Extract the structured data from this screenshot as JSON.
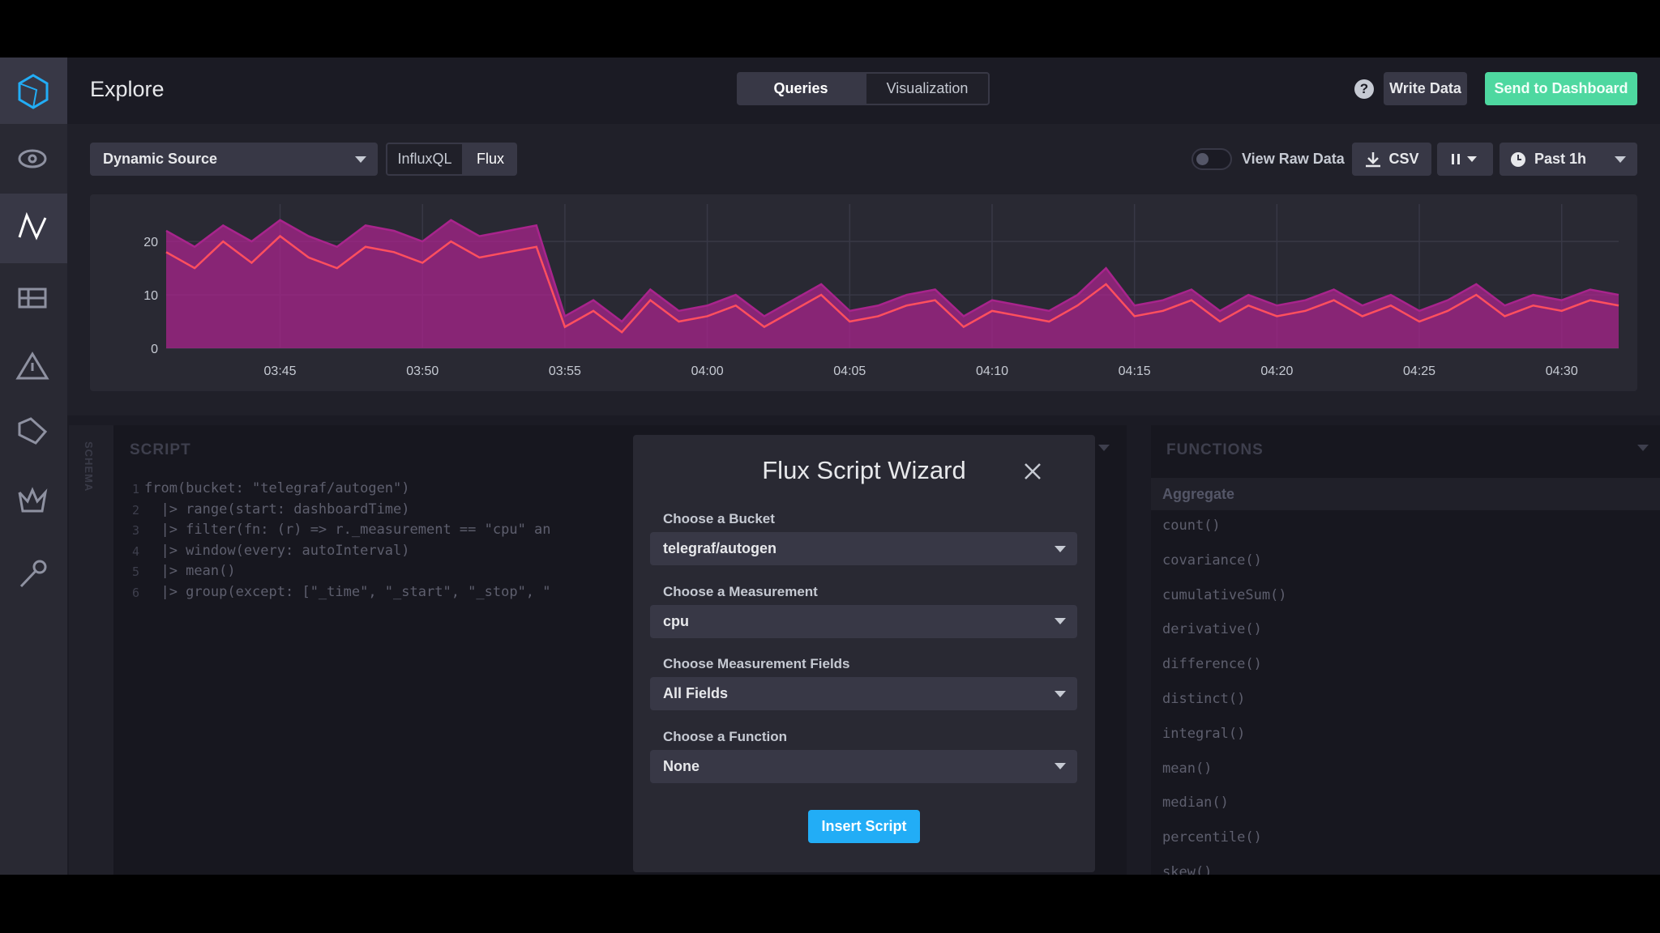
{
  "header": {
    "title": "Explore",
    "tabs": [
      "Queries",
      "Visualization"
    ],
    "help": "?",
    "buttons": [
      "Write Data",
      "Send to Dashboard"
    ]
  },
  "toolbar": {
    "source": "Dynamic Source",
    "languages": [
      "InfluxQL",
      "Flux"
    ],
    "raw_data": "View Raw Data",
    "csv": "CSV",
    "time_range": "Past 1h"
  },
  "chart_data": {
    "type": "area",
    "x": [
      "03:41",
      "03:42",
      "03:43",
      "03:44",
      "03:45",
      "03:46",
      "03:47",
      "03:48",
      "03:49",
      "03:50",
      "03:51",
      "03:52",
      "03:53",
      "03:54",
      "03:55",
      "03:56",
      "03:57",
      "03:58",
      "03:59",
      "04:00",
      "04:01",
      "04:02",
      "04:03",
      "04:04",
      "04:05",
      "04:06",
      "04:07",
      "04:08",
      "04:09",
      "04:10",
      "04:11",
      "04:12",
      "04:13",
      "04:14",
      "04:15",
      "04:16",
      "04:17",
      "04:18",
      "04:19",
      "04:20",
      "04:21",
      "04:22",
      "04:23",
      "04:24",
      "04:25",
      "04:26",
      "04:27",
      "04:28",
      "04:29",
      "04:30",
      "04:31",
      "04:32"
    ],
    "series": [
      {
        "color": "#a8248c",
        "values": [
          22,
          19,
          23,
          20,
          24,
          21,
          19,
          23,
          22,
          20,
          24,
          21,
          22,
          23,
          6,
          9,
          5,
          11,
          7,
          8,
          10,
          6,
          9,
          12,
          7,
          8,
          10,
          11,
          6,
          9,
          8,
          7,
          10,
          15,
          8,
          9,
          11,
          7,
          10,
          8,
          9,
          11,
          8,
          10,
          7,
          9,
          12,
          8,
          10,
          9,
          11,
          10
        ]
      },
      {
        "color": "#ff4f5e",
        "values": [
          18,
          15,
          20,
          16,
          21,
          17,
          15,
          19,
          18,
          16,
          20,
          17,
          18,
          19,
          4,
          7,
          3,
          9,
          5,
          6,
          8,
          4,
          7,
          10,
          5,
          6,
          8,
          9,
          4,
          7,
          6,
          5,
          8,
          12,
          6,
          7,
          9,
          5,
          8,
          6,
          7,
          9,
          6,
          8,
          5,
          7,
          10,
          6,
          8,
          7,
          9,
          8
        ]
      }
    ],
    "xlim": [
      "03:41",
      "04:32"
    ],
    "xticks": [
      "03:45",
      "03:50",
      "03:55",
      "04:00",
      "04:05",
      "04:10",
      "04:15",
      "04:20",
      "04:25",
      "04:30"
    ],
    "ylim": [
      0,
      27
    ],
    "yticks": [
      0,
      10,
      20
    ],
    "grid": true
  },
  "script": {
    "title": "SCRIPT",
    "schema": "SCHEMA",
    "lines": [
      {
        "number": "1",
        "code": "from(bucket: \"telegraf/autogen\")"
      },
      {
        "number": "2",
        "code": "  |> range(start: dashboardTime)"
      },
      {
        "number": "3",
        "code": "  |> filter(fn: (r) => r._measurement == \"cpu\" an"
      },
      {
        "number": "4",
        "code": "  |> window(every: autoInterval)"
      },
      {
        "number": "5",
        "code": "  |> mean()"
      },
      {
        "number": "6",
        "code": "  |> group(except: [\"_time\", \"_start\", \"_stop\", \""
      }
    ]
  },
  "functions": {
    "title": "FUNCTIONS",
    "group": "Aggregate",
    "items": [
      "count()",
      "covariance()",
      "cumulativeSum()",
      "derivative()",
      "difference()",
      "distinct()",
      "integral()",
      "mean()",
      "median()",
      "percentile()",
      "skew()"
    ]
  },
  "wizard": {
    "title": "Flux Script Wizard",
    "fields": [
      {
        "label": "Choose a Bucket",
        "value": "telegraf/autogen"
      },
      {
        "label": "Choose a Measurement",
        "value": "cpu"
      },
      {
        "label": "Choose Measurement Fields",
        "value": "All Fields"
      },
      {
        "label": "Choose a Function",
        "value": "None"
      }
    ],
    "button": "Insert Script"
  }
}
